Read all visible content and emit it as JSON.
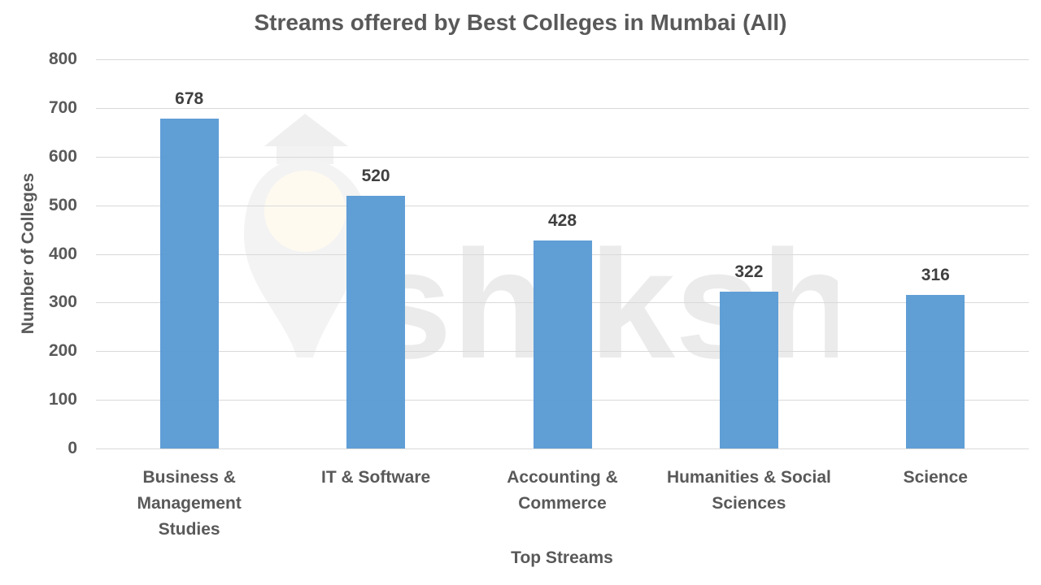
{
  "chart_data": {
    "type": "bar",
    "title": "Streams offered by Best Colleges in Mumbai (All)",
    "xlabel": "Top Streams",
    "ylabel": "Number of Colleges",
    "categories": [
      "Business & Management Studies",
      "IT & Software",
      "Accounting & Commerce",
      "Humanities & Social Sciences",
      "Science"
    ],
    "category_display": [
      "Business &\nManagement\nStudies",
      "IT & Software",
      "Accounting &\nCommerce",
      "Humanities & Social\nSciences",
      "Science"
    ],
    "values": [
      678,
      520,
      428,
      322,
      316
    ],
    "value_labels": [
      "678",
      "520",
      "428",
      "322",
      "316"
    ],
    "ylim": [
      0,
      800
    ],
    "yticks": [
      "0",
      "100",
      "200",
      "300",
      "400",
      "500",
      "600",
      "700",
      "800"
    ],
    "grid": true,
    "legend": null,
    "bar_color": "#5B9BD5"
  },
  "watermark": {
    "text": "shiksha",
    "icon": "graduation-cap-bulb-logo"
  }
}
